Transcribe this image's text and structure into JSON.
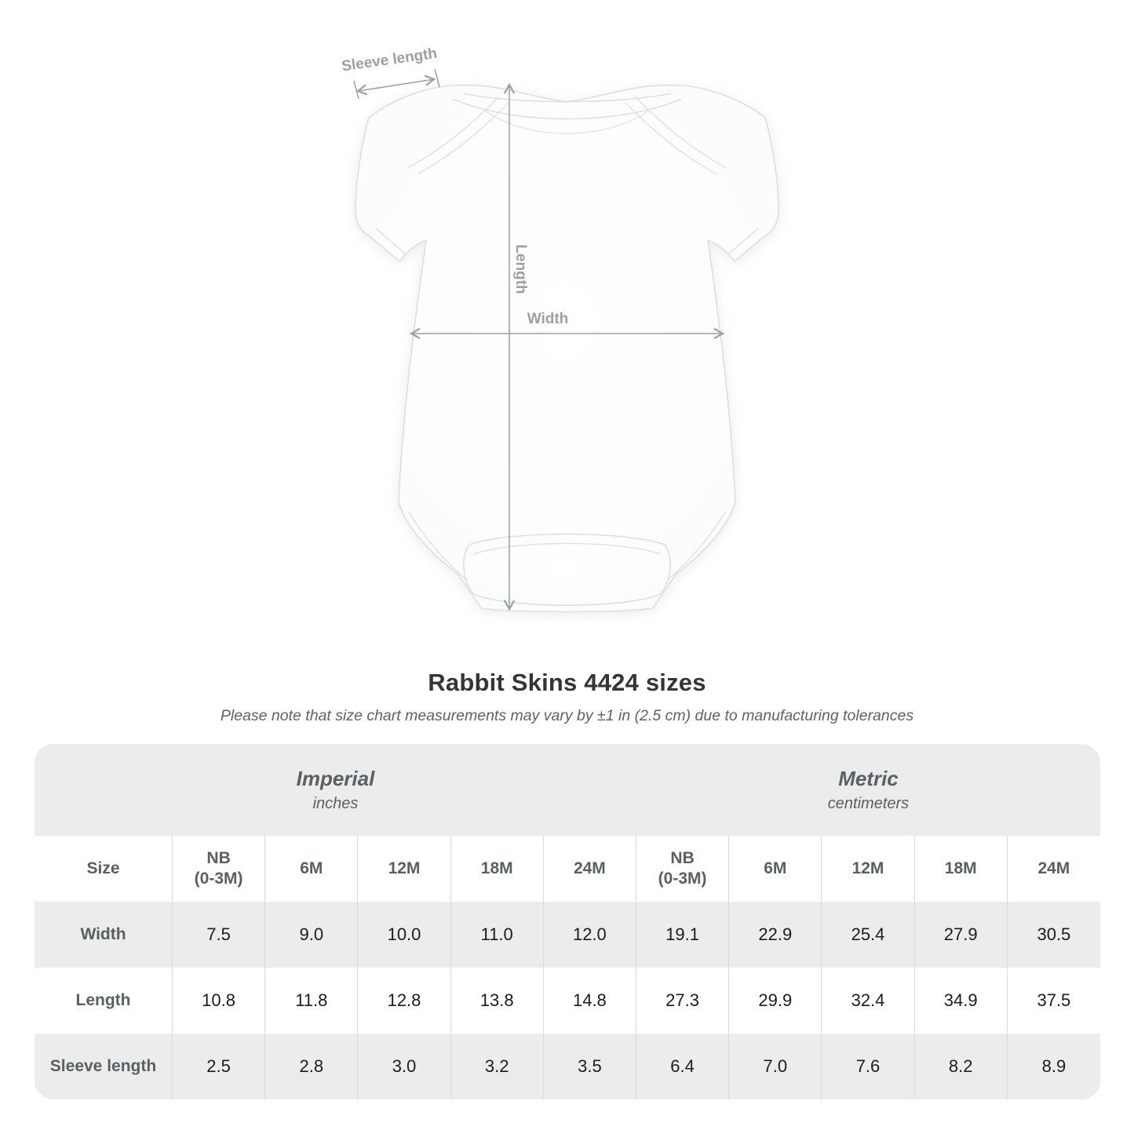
{
  "annotations": {
    "sleeve_length_label": "Sleeve length",
    "length_label": "Length",
    "width_label": "Width",
    "annotation_color": "#9aa0a3"
  },
  "heading": {
    "title": "Rabbit Skins 4424 sizes",
    "subtitle": "Please note that size chart measurements may vary by ±1 in (2.5 cm) due to manufacturing tolerances"
  },
  "chart_data": {
    "type": "table",
    "title": "Rabbit Skins 4424 sizes",
    "note": "Please note that size chart measurements may vary by ±1 in (2.5 cm) due to manufacturing tolerances",
    "unit_groups": [
      {
        "label": "Imperial",
        "unit": "inches"
      },
      {
        "label": "Metric",
        "unit": "centimeters"
      }
    ],
    "size_column_header": "Size",
    "size_columns": [
      {
        "line1": "NB",
        "line2": "(0-3M)"
      },
      {
        "line1": "6M",
        "line2": ""
      },
      {
        "line1": "12M",
        "line2": ""
      },
      {
        "line1": "18M",
        "line2": ""
      },
      {
        "line1": "24M",
        "line2": ""
      }
    ],
    "rows": [
      {
        "label": "Width",
        "imperial": [
          "7.5",
          "9.0",
          "10.0",
          "11.0",
          "12.0"
        ],
        "metric": [
          "19.1",
          "22.9",
          "25.4",
          "27.9",
          "30.5"
        ]
      },
      {
        "label": "Length",
        "imperial": [
          "10.8",
          "11.8",
          "12.8",
          "13.8",
          "14.8"
        ],
        "metric": [
          "27.3",
          "29.9",
          "32.4",
          "34.9",
          "37.5"
        ]
      },
      {
        "label": "Sleeve length",
        "imperial": [
          "2.5",
          "2.8",
          "3.0",
          "3.2",
          "3.5"
        ],
        "metric": [
          "6.4",
          "7.0",
          "7.6",
          "8.2",
          "8.9"
        ]
      }
    ],
    "layout_hints": {
      "band_bg": "#ececec",
      "alt_row_bg": "#ececec",
      "divider": "#d9d9d9",
      "header_text_color": "#596063",
      "value_text_color": "#1c1c1e"
    }
  }
}
